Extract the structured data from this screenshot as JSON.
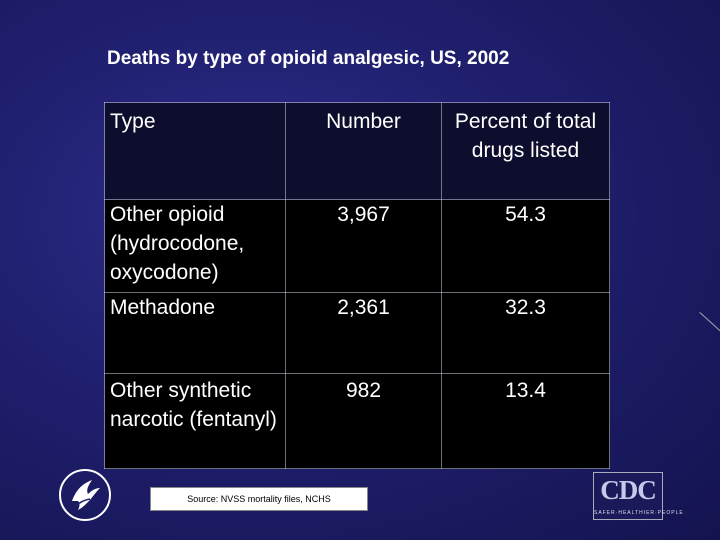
{
  "title": "Deaths by type of opioid analgesic, US, 2002",
  "table": {
    "headers": [
      "Type",
      "Number",
      "Percent of total drugs listed"
    ],
    "rows": [
      {
        "type": "Other opioid (hydrocodone, oxycodone)",
        "number": "3,967",
        "percent": "54.3"
      },
      {
        "type": "Methadone",
        "number": "2,361",
        "percent": "32.3"
      },
      {
        "type": "Other synthetic narcotic (fentanyl)",
        "number": "982",
        "percent": "13.4"
      }
    ]
  },
  "source": "Source: NVSS mortality files, NCHS",
  "logos": {
    "cdc_text": "CDC",
    "cdc_sub": "SAFER·HEALTHIER·PEOPLE",
    "hhs_icon": "hhs-eagle-icon"
  },
  "colors": {
    "background": "#1f1f6e",
    "header_row": "#0d0d2e",
    "body_rows": "#000000",
    "text": "#ffffff"
  }
}
